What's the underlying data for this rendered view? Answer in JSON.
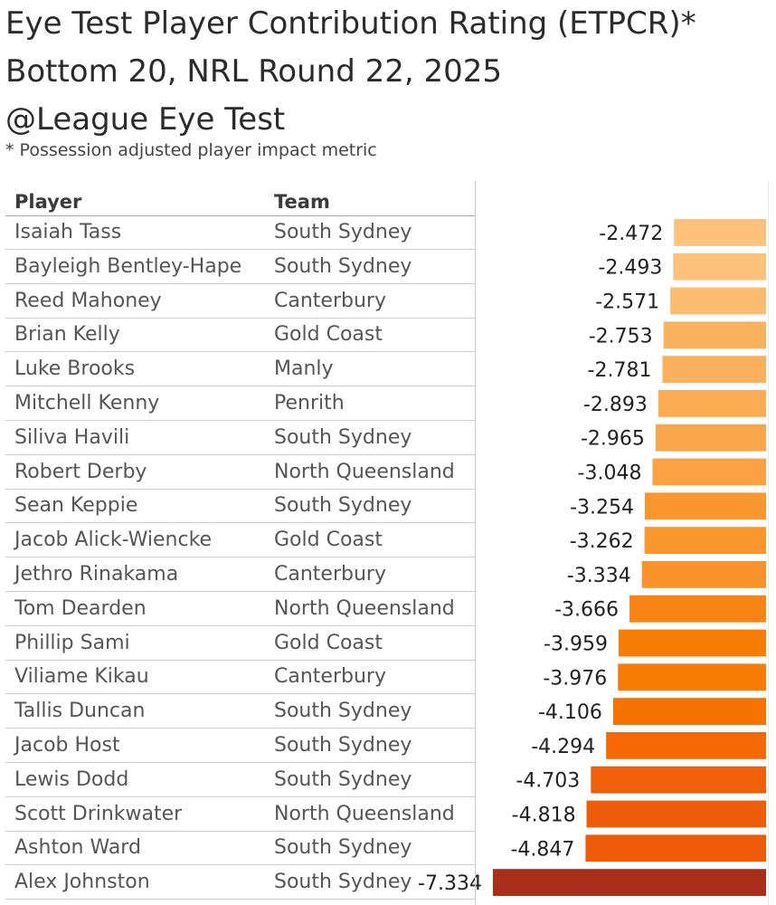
{
  "title_lines": [
    "Eye Test Player Contribution Rating (ETPCR)*",
    "Bottom 20, NRL Round 22, 2025",
    "@League Eye Test"
  ],
  "subtitle": "* Possession adjusted player impact metric",
  "columns": {
    "player": "Player",
    "team": "Team"
  },
  "chart_data": {
    "type": "bar",
    "orientation": "horizontal",
    "xlim": [
      -7.6,
      0
    ],
    "categories": [
      "Isaiah Tass",
      "Bayleigh Bentley-Hape",
      "Reed Mahoney",
      "Brian Kelly",
      "Luke Brooks",
      "Mitchell Kenny",
      "Siliva Havili",
      "Robert Derby",
      "Sean Keppie",
      "Jacob Alick-Wiencke",
      "Jethro Rinakama",
      "Tom Dearden",
      "Phillip Sami",
      "Viliame Kikau",
      "Tallis Duncan",
      "Jacob Host",
      "Lewis Dodd",
      "Scott Drinkwater",
      "Ashton Ward",
      "Alex Johnston"
    ],
    "teams": [
      "South Sydney",
      "South Sydney",
      "Canterbury",
      "Gold Coast",
      "Manly",
      "Penrith",
      "South Sydney",
      "North Queensland",
      "South Sydney",
      "Gold Coast",
      "Canterbury",
      "North Queensland",
      "Gold Coast",
      "Canterbury",
      "South Sydney",
      "South Sydney",
      "South Sydney",
      "North Queensland",
      "South Sydney",
      "South Sydney"
    ],
    "values": [
      -2.472,
      -2.493,
      -2.571,
      -2.753,
      -2.781,
      -2.893,
      -2.965,
      -3.048,
      -3.254,
      -3.262,
      -3.334,
      -3.666,
      -3.959,
      -3.976,
      -4.106,
      -4.294,
      -4.703,
      -4.818,
      -4.847,
      -7.334
    ],
    "labels": [
      "-2.472",
      "-2.493",
      "-2.571",
      "-2.753",
      "-2.781",
      "-2.893",
      "-2.965",
      "-3.048",
      "-3.254",
      "-3.262",
      "-3.334",
      "-3.666",
      "-3.959",
      "-3.976",
      "-4.106",
      "-4.294",
      "-4.703",
      "-4.818",
      "-4.847",
      "-7.334"
    ],
    "colors": [
      "#fcc27b",
      "#fcc17a",
      "#fcbc70",
      "#fbb25e",
      "#fbb15c",
      "#fbab52",
      "#faa74c",
      "#faa244",
      "#f9972f",
      "#f9962e",
      "#f9922a",
      "#f88414",
      "#f77d06",
      "#f77b05",
      "#f67203",
      "#f56904",
      "#f05f09",
      "#ee5d0a",
      "#ee5b0b",
      "#a92f1a"
    ]
  }
}
